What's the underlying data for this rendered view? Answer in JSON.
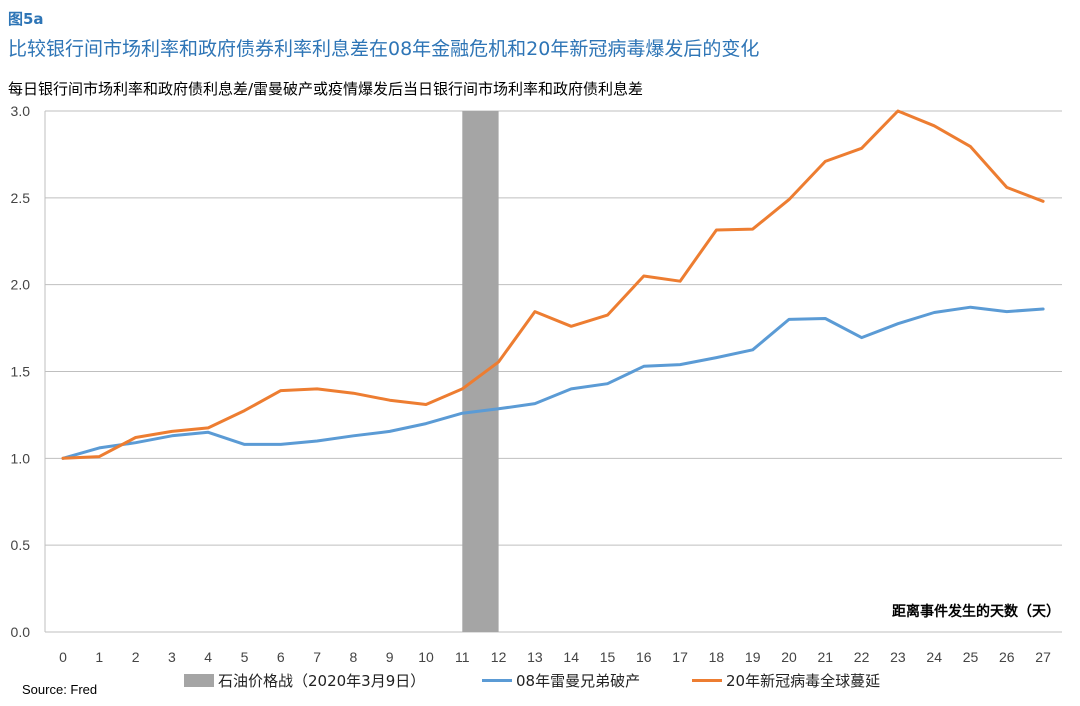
{
  "figure": {
    "label": "图5a",
    "title": "比较银行间市场利率和政府债券利率利息差在08年金融危机和20年新冠病毒爆发后的变化",
    "source": "Source: Fred"
  },
  "chart_data": {
    "type": "line",
    "ylabel": "每日银行间市场利率和政府债利息差/雷曼破产或疫情爆发后当日银行间市场利率和政府债利息差",
    "xlabel": "距离事件发生的天数（天）",
    "x": [
      0,
      1,
      2,
      3,
      4,
      5,
      6,
      7,
      8,
      9,
      10,
      11,
      12,
      13,
      14,
      15,
      16,
      17,
      18,
      19,
      20,
      21,
      22,
      23,
      24,
      25,
      26,
      27
    ],
    "xlim": [
      0,
      27
    ],
    "ylim": [
      0.0,
      3.0
    ],
    "yticks": [
      "0.0",
      "0.5",
      "1.0",
      "1.5",
      "2.0",
      "2.5",
      "3.0"
    ],
    "grid": "horizontal",
    "legend_position": "bottom",
    "shaded_band": {
      "name": "石油价格战（2020年3月9日）",
      "x_start": 11,
      "x_end": 12,
      "color": "#a5a5a5"
    },
    "series": [
      {
        "name": "08年雷曼兄弟破产",
        "color": "#5b9bd5",
        "values": [
          1.0,
          1.06,
          1.09,
          1.13,
          1.15,
          1.08,
          1.08,
          1.1,
          1.13,
          1.155,
          1.2,
          1.26,
          1.285,
          1.315,
          1.4,
          1.43,
          1.53,
          1.54,
          1.58,
          1.625,
          1.8,
          1.805,
          1.695,
          1.775,
          1.84,
          1.87,
          1.845,
          1.86
        ]
      },
      {
        "name": "20年新冠病毒全球蔓延",
        "color": "#ed7d31",
        "values": [
          1.0,
          1.01,
          1.12,
          1.155,
          1.175,
          1.275,
          1.39,
          1.4,
          1.375,
          1.335,
          1.31,
          1.4,
          1.555,
          1.845,
          1.76,
          1.825,
          2.05,
          2.02,
          2.315,
          2.32,
          2.49,
          2.71,
          2.785,
          3.0,
          2.915,
          2.795,
          2.56,
          2.48
        ]
      }
    ]
  }
}
